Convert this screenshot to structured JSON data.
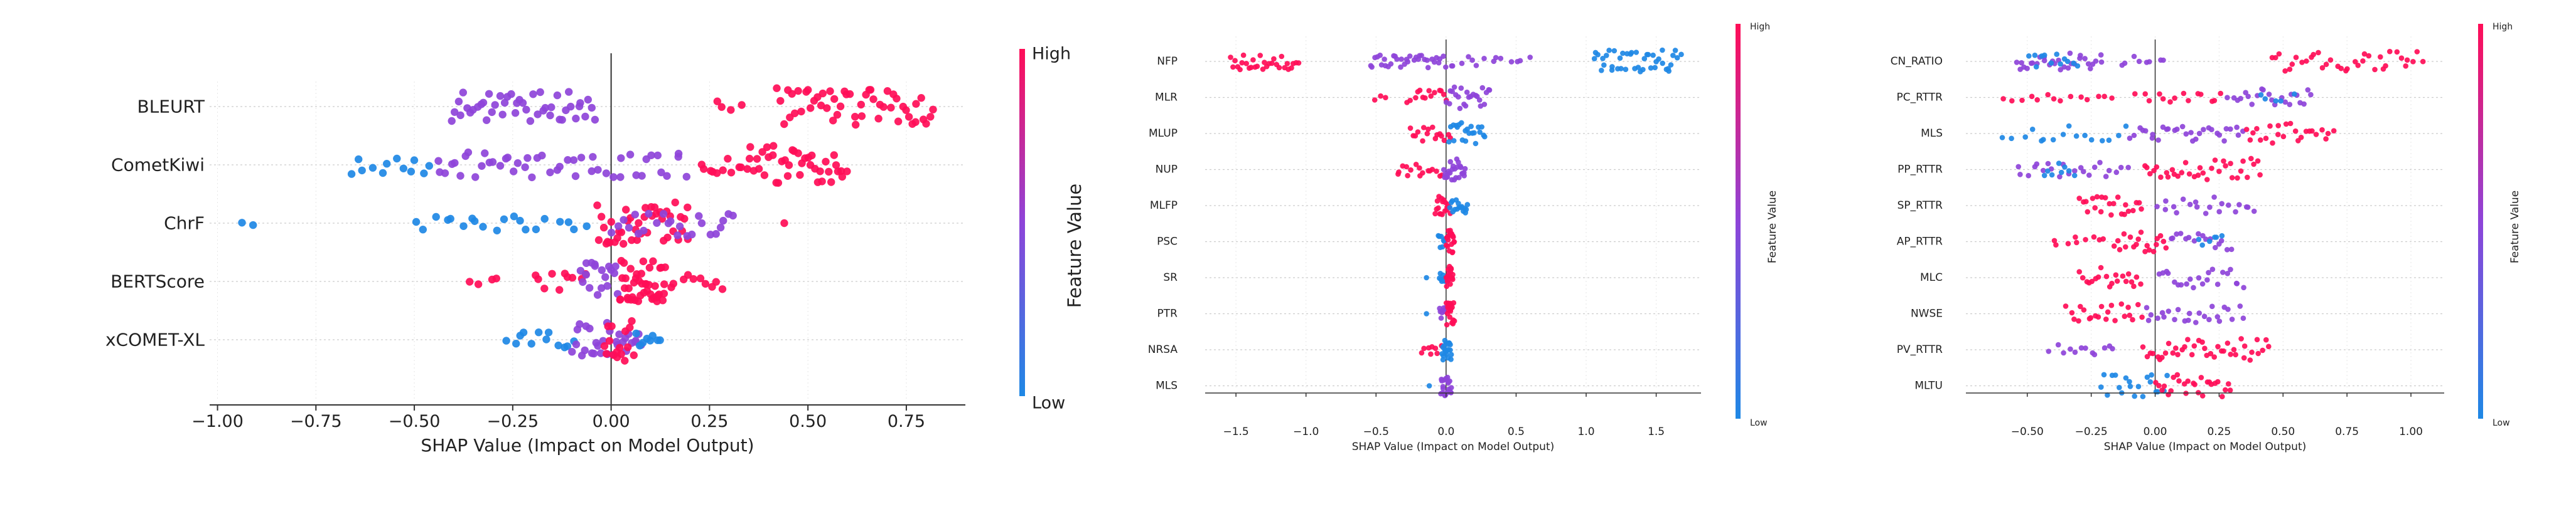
{
  "colors": {
    "low": "#1e88e5",
    "mid": "#8e44d9",
    "high": "#ff0d57",
    "grid": "#cccccc",
    "axis": "#333333"
  },
  "chart_data": [
    {
      "type": "scatter",
      "title": "",
      "xlabel": "SHAP Value (Impact on Model Output)",
      "colorbar": {
        "label": "Feature Value",
        "high": "High",
        "low": "Low"
      },
      "xlim": [
        -1.02,
        0.9
      ],
      "xticks": [
        -1.0,
        -0.75,
        -0.5,
        -0.25,
        0.0,
        0.25,
        0.5,
        0.75
      ],
      "xtick_labels": [
        "−1.00",
        "−0.75",
        "−0.50",
        "−0.25",
        "0.00",
        "0.25",
        "0.50",
        "0.75"
      ],
      "features": [
        "BLEURT",
        "CometKiwi",
        "ChrF",
        "BERTScore",
        "xCOMET-XL"
      ],
      "series": [
        {
          "name": "BLEURT",
          "segments": [
            {
              "from": -0.41,
              "to": -0.04,
              "color": "mid",
              "n": 46,
              "spread": 0.7
            },
            {
              "from": 0.26,
              "to": 0.34,
              "color": "high",
              "n": 4,
              "spread": 0.3
            },
            {
              "from": 0.42,
              "to": 0.82,
              "color": "high",
              "n": 52,
              "spread": 0.9
            }
          ]
        },
        {
          "name": "CometKiwi",
          "segments": [
            {
              "from": -0.67,
              "to": -0.45,
              "color": "low",
              "n": 12,
              "spread": 0.5
            },
            {
              "from": -0.45,
              "to": -0.18,
              "color": "mid",
              "n": 22,
              "spread": 0.6
            },
            {
              "from": -0.18,
              "to": 0.2,
              "color": "mid",
              "n": 26,
              "spread": 0.6
            },
            {
              "from": 0.22,
              "to": 0.34,
              "color": "high",
              "n": 10,
              "spread": 0.4
            },
            {
              "from": 0.34,
              "to": 0.6,
              "color": "high",
              "n": 40,
              "spread": 0.9
            }
          ]
        },
        {
          "name": "ChrF",
          "segments": [
            {
              "from": -0.95,
              "to": -0.88,
              "color": "low",
              "n": 2,
              "spread": 0.1
            },
            {
              "from": -0.5,
              "to": -0.2,
              "color": "low",
              "n": 14,
              "spread": 0.4
            },
            {
              "from": -0.2,
              "to": -0.05,
              "color": "low",
              "n": 6,
              "spread": 0.3
            },
            {
              "from": -0.04,
              "to": 0.2,
              "color": "high",
              "n": 42,
              "spread": 1.0
            },
            {
              "from": 0.0,
              "to": 0.32,
              "color": "mid",
              "n": 24,
              "spread": 0.7
            },
            {
              "from": 0.44,
              "to": 0.44,
              "color": "high",
              "n": 1,
              "spread": 0.0
            }
          ]
        },
        {
          "name": "BERTScore",
          "segments": [
            {
              "from": -0.36,
              "to": -0.28,
              "color": "high",
              "n": 4,
              "spread": 0.2
            },
            {
              "from": -0.2,
              "to": -0.06,
              "color": "high",
              "n": 10,
              "spread": 0.4
            },
            {
              "from": -0.08,
              "to": 0.02,
              "color": "mid",
              "n": 18,
              "spread": 0.9
            },
            {
              "from": 0.02,
              "to": 0.14,
              "color": "high",
              "n": 44,
              "spread": 1.0
            },
            {
              "from": 0.14,
              "to": 0.29,
              "color": "high",
              "n": 10,
              "spread": 0.4
            }
          ]
        },
        {
          "name": "xCOMET-XL",
          "segments": [
            {
              "from": -0.27,
              "to": -0.08,
              "color": "low",
              "n": 12,
              "spread": 0.4
            },
            {
              "from": -0.1,
              "to": 0.08,
              "color": "mid",
              "n": 30,
              "spread": 0.8
            },
            {
              "from": -0.02,
              "to": 0.06,
              "color": "high",
              "n": 16,
              "spread": 1.0
            },
            {
              "from": 0.06,
              "to": 0.13,
              "color": "low",
              "n": 8,
              "spread": 0.4
            }
          ]
        }
      ]
    },
    {
      "type": "scatter",
      "title": "",
      "xlabel": "SHAP Value (Impact on Model Output)",
      "colorbar": {
        "label": "Feature Value",
        "high": "High",
        "low": "Low"
      },
      "xlim": [
        -1.72,
        1.82
      ],
      "xticks": [
        -1.5,
        -1.0,
        -0.5,
        0.0,
        0.5,
        1.0,
        1.5
      ],
      "xtick_labels": [
        "−1.5",
        "−1.0",
        "−0.5",
        "0.0",
        "0.5",
        "1.0",
        "1.5"
      ],
      "features": [
        "NFP",
        "MLR",
        "MLUP",
        "NUP",
        "MLFP",
        "PSC",
        "SR",
        "PTR",
        "NRSA",
        "MLS"
      ],
      "series": [
        {
          "name": "NFP",
          "segments": [
            {
              "from": -1.55,
              "to": -1.05,
              "color": "high",
              "n": 30,
              "spread": 0.7
            },
            {
              "from": -0.55,
              "to": 0.0,
              "color": "mid",
              "n": 34,
              "spread": 0.5
            },
            {
              "from": 0.0,
              "to": 0.6,
              "color": "mid",
              "n": 14,
              "spread": 0.4
            },
            {
              "from": 1.05,
              "to": 1.68,
              "color": "low",
              "n": 42,
              "spread": 0.9
            }
          ]
        },
        {
          "name": "MLR",
          "segments": [
            {
              "from": -0.55,
              "to": -0.42,
              "color": "high",
              "n": 3,
              "spread": 0.2
            },
            {
              "from": -0.28,
              "to": 0.02,
              "color": "high",
              "n": 14,
              "spread": 0.6
            },
            {
              "from": 0.0,
              "to": 0.32,
              "color": "mid",
              "n": 24,
              "spread": 0.9
            }
          ]
        },
        {
          "name": "MLUP",
          "segments": [
            {
              "from": -0.26,
              "to": 0.04,
              "color": "high",
              "n": 16,
              "spread": 0.6
            },
            {
              "from": 0.02,
              "to": 0.28,
              "color": "low",
              "n": 22,
              "spread": 0.9
            }
          ]
        },
        {
          "name": "NUP",
          "segments": [
            {
              "from": -0.36,
              "to": -0.02,
              "color": "high",
              "n": 16,
              "spread": 0.6
            },
            {
              "from": -0.02,
              "to": 0.14,
              "color": "mid",
              "n": 26,
              "spread": 0.9
            }
          ]
        },
        {
          "name": "MLFP",
          "segments": [
            {
              "from": -0.08,
              "to": 0.03,
              "color": "high",
              "n": 18,
              "spread": 0.8
            },
            {
              "from": 0.02,
              "to": 0.16,
              "color": "low",
              "n": 16,
              "spread": 0.6
            }
          ]
        },
        {
          "name": "PSC",
          "segments": [
            {
              "from": -0.06,
              "to": 0.0,
              "color": "low",
              "n": 8,
              "spread": 0.5
            },
            {
              "from": 0.0,
              "to": 0.06,
              "color": "high",
              "n": 20,
              "spread": 0.9
            }
          ]
        },
        {
          "name": "SR",
          "segments": [
            {
              "from": -0.14,
              "to": -0.12,
              "color": "low",
              "n": 1,
              "spread": 0.0
            },
            {
              "from": -0.05,
              "to": 0.0,
              "color": "low",
              "n": 8,
              "spread": 0.5
            },
            {
              "from": 0.0,
              "to": 0.05,
              "color": "high",
              "n": 18,
              "spread": 0.9
            }
          ]
        },
        {
          "name": "PTR",
          "segments": [
            {
              "from": -0.14,
              "to": -0.12,
              "color": "low",
              "n": 1,
              "spread": 0.0
            },
            {
              "from": -0.05,
              "to": 0.0,
              "color": "mid",
              "n": 8,
              "spread": 0.5
            },
            {
              "from": 0.0,
              "to": 0.06,
              "color": "high",
              "n": 18,
              "spread": 0.9
            }
          ]
        },
        {
          "name": "NRSA",
          "segments": [
            {
              "from": -0.18,
              "to": -0.03,
              "color": "high",
              "n": 8,
              "spread": 0.4
            },
            {
              "from": -0.03,
              "to": 0.04,
              "color": "low",
              "n": 20,
              "spread": 0.8
            }
          ]
        },
        {
          "name": "MLS",
          "segments": [
            {
              "from": -0.12,
              "to": -0.1,
              "color": "low",
              "n": 1,
              "spread": 0.0
            },
            {
              "from": -0.04,
              "to": 0.04,
              "color": "mid",
              "n": 22,
              "spread": 0.9
            }
          ]
        }
      ]
    },
    {
      "type": "scatter",
      "title": "",
      "xlabel": "SHAP Value (Impact on Model Output)",
      "colorbar": {
        "label": "Feature Value",
        "high": "High",
        "low": "Low"
      },
      "xlim": [
        -0.74,
        1.13
      ],
      "xticks": [
        -0.5,
        -0.25,
        0.0,
        0.25,
        0.5,
        0.75,
        1.0
      ],
      "xtick_labels": [
        "−0.50",
        "−0.25",
        "0.00",
        "0.25",
        "0.50",
        "0.75",
        "1.00"
      ],
      "features": [
        "CN_RATIO",
        "PC_RTTR",
        "MLS",
        "PP_RTTR",
        "SP_RTTR",
        "AP_RTTR",
        "MLC",
        "NWSE",
        "PV_RTTR",
        "MLTU"
      ],
      "series": [
        {
          "name": "CN_RATIO",
          "segments": [
            {
              "from": -0.55,
              "to": -0.2,
              "color": "mid",
              "n": 30,
              "spread": 0.7
            },
            {
              "from": -0.5,
              "to": -0.3,
              "color": "low",
              "n": 12,
              "spread": 0.6
            },
            {
              "from": -0.15,
              "to": 0.05,
              "color": "mid",
              "n": 8,
              "spread": 0.5
            },
            {
              "from": 0.45,
              "to": 1.05,
              "color": "high",
              "n": 36,
              "spread": 0.8
            }
          ]
        },
        {
          "name": "PC_RTTR",
          "segments": [
            {
              "from": -0.6,
              "to": -0.15,
              "color": "high",
              "n": 14,
              "spread": 0.3
            },
            {
              "from": -0.08,
              "to": 0.28,
              "color": "high",
              "n": 14,
              "spread": 0.4
            },
            {
              "from": 0.28,
              "to": 0.62,
              "color": "mid",
              "n": 22,
              "spread": 0.8
            },
            {
              "from": 0.38,
              "to": 0.55,
              "color": "low",
              "n": 5,
              "spread": 0.4
            }
          ]
        },
        {
          "name": "MLS",
          "segments": [
            {
              "from": -0.6,
              "to": -0.1,
              "color": "low",
              "n": 16,
              "spread": 0.6
            },
            {
              "from": -0.1,
              "to": 0.35,
              "color": "mid",
              "n": 30,
              "spread": 0.6
            },
            {
              "from": 0.35,
              "to": 0.7,
              "color": "high",
              "n": 24,
              "spread": 0.8
            }
          ]
        },
        {
          "name": "PP_RTTR",
          "segments": [
            {
              "from": -0.55,
              "to": -0.1,
              "color": "mid",
              "n": 22,
              "spread": 0.6
            },
            {
              "from": -0.45,
              "to": -0.3,
              "color": "low",
              "n": 8,
              "spread": 0.5
            },
            {
              "from": -0.05,
              "to": 0.42,
              "color": "high",
              "n": 34,
              "spread": 0.9
            }
          ]
        },
        {
          "name": "SP_RTTR",
          "segments": [
            {
              "from": -0.3,
              "to": -0.05,
              "color": "high",
              "n": 22,
              "spread": 0.9
            },
            {
              "from": 0.0,
              "to": 0.4,
              "color": "mid",
              "n": 20,
              "spread": 0.7
            }
          ]
        },
        {
          "name": "AP_RTTR",
          "segments": [
            {
              "from": -0.42,
              "to": -0.15,
              "color": "high",
              "n": 10,
              "spread": 0.4
            },
            {
              "from": -0.15,
              "to": 0.05,
              "color": "high",
              "n": 18,
              "spread": 0.8
            },
            {
              "from": 0.05,
              "to": 0.3,
              "color": "mid",
              "n": 16,
              "spread": 0.7
            },
            {
              "from": 0.15,
              "to": 0.28,
              "color": "low",
              "n": 6,
              "spread": 0.5
            }
          ]
        },
        {
          "name": "MLC",
          "segments": [
            {
              "from": -0.3,
              "to": -0.05,
              "color": "high",
              "n": 20,
              "spread": 0.8
            },
            {
              "from": 0.0,
              "to": 0.35,
              "color": "mid",
              "n": 22,
              "spread": 0.8
            }
          ]
        },
        {
          "name": "NWSE",
          "segments": [
            {
              "from": -0.35,
              "to": -0.05,
              "color": "high",
              "n": 22,
              "spread": 0.8
            },
            {
              "from": -0.05,
              "to": 0.35,
              "color": "mid",
              "n": 24,
              "spread": 0.7
            }
          ]
        },
        {
          "name": "PV_RTTR",
          "segments": [
            {
              "from": -0.42,
              "to": -0.15,
              "color": "mid",
              "n": 12,
              "spread": 0.4
            },
            {
              "from": -0.05,
              "to": 0.45,
              "color": "high",
              "n": 40,
              "spread": 0.9
            }
          ]
        },
        {
          "name": "MLTU",
          "segments": [
            {
              "from": -0.22,
              "to": 0.05,
              "color": "low",
              "n": 20,
              "spread": 0.9
            },
            {
              "from": 0.0,
              "to": 0.3,
              "color": "high",
              "n": 26,
              "spread": 0.9
            }
          ]
        }
      ]
    }
  ]
}
